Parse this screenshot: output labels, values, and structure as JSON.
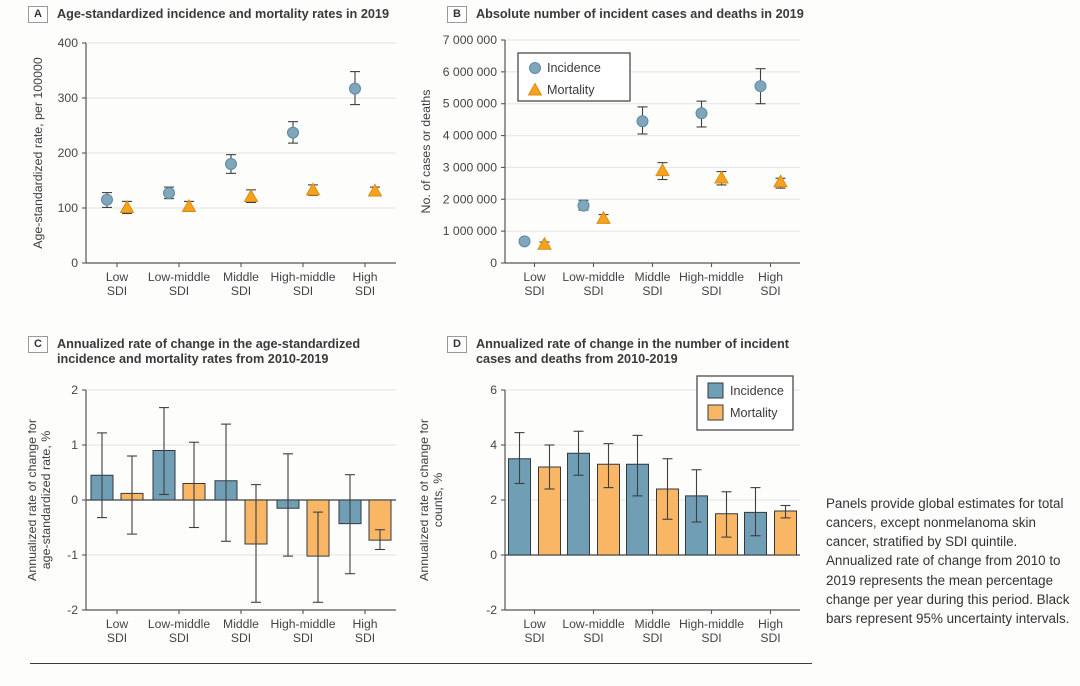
{
  "figure": {
    "caption": "Panels provide global estimates for total cancers, except nonmelanoma skin cancer, stratified by SDI quintile. Annualized rate of change from 2010 to 2019 represents the mean percentage change per year during this period. Black bars represent 95% uncertainty intervals."
  },
  "colors": {
    "incidence_marker": "#7FA6BB",
    "incidence_marker_stroke": "#5E8BA3",
    "mortality_marker": "#F6A21E",
    "mortality_marker_stroke": "#D88E10",
    "incidence_bar": "#6F9EB5",
    "mortality_bar": "#F9B766",
    "bar_stroke": "#33393E",
    "error_bar": "#3F3F3F",
    "gridline": "#E4E4E1",
    "axis": "#565656",
    "tick_text": "#444444",
    "legend_border": "#4A4A4A"
  },
  "chart_data": [
    {
      "type": "scatter",
      "letter": "A",
      "title": "Age-standardized incidence and mortality rates in 2019",
      "ylabel_lines": [
        "Age-standardized rate, per 100000"
      ],
      "ylim": [
        0,
        400
      ],
      "yticks": [
        {
          "value": 0,
          "label": "0"
        },
        {
          "value": 100,
          "label": "100"
        },
        {
          "value": 200,
          "label": "200"
        },
        {
          "value": 300,
          "label": "300"
        },
        {
          "value": 400,
          "label": "400"
        }
      ],
      "categories": [
        [
          "Low",
          "SDI"
        ],
        [
          "Low-middle",
          "SDI"
        ],
        [
          "Middle",
          "SDI"
        ],
        [
          "High-middle",
          "SDI"
        ],
        [
          "High",
          "SDI"
        ]
      ],
      "legend": null,
      "series": [
        {
          "name": "Incidence",
          "key": "incidence",
          "marker": "circle",
          "values": [
            115,
            127,
            180,
            237,
            317
          ],
          "ci_low": [
            101,
            117,
            163,
            218,
            288
          ],
          "ci_high": [
            128,
            138,
            197,
            257,
            348
          ]
        },
        {
          "name": "Mortality",
          "key": "mortality",
          "marker": "triangle",
          "values": [
            101,
            103,
            121,
            133,
            131
          ],
          "ci_low": [
            90,
            94,
            110,
            123,
            125
          ],
          "ci_high": [
            112,
            112,
            133,
            142,
            138
          ]
        }
      ]
    },
    {
      "type": "scatter",
      "letter": "B",
      "title": "Absolute number of incident cases and deaths in 2019",
      "ylabel_lines": [
        "No. of cases or deaths"
      ],
      "ylim": [
        0,
        7000000
      ],
      "yticks": [
        {
          "value": 0,
          "label": "0"
        },
        {
          "value": 1000000,
          "label": "1 000 000"
        },
        {
          "value": 2000000,
          "label": "2 000 000"
        },
        {
          "value": 3000000,
          "label": "3 000 000"
        },
        {
          "value": 4000000,
          "label": "4 000 000"
        },
        {
          "value": 5000000,
          "label": "5 000 000"
        },
        {
          "value": 6000000,
          "label": "6 000 000"
        },
        {
          "value": 7000000,
          "label": "7 000 000"
        }
      ],
      "categories": [
        [
          "Low",
          "SDI"
        ],
        [
          "Low-middle",
          "SDI"
        ],
        [
          "Middle",
          "SDI"
        ],
        [
          "High-middle",
          "SDI"
        ],
        [
          "High",
          "SDI"
        ]
      ],
      "legend": {
        "position": "inside-top-left",
        "items": [
          {
            "label": "Incidence",
            "series": "incidence",
            "marker": "circle"
          },
          {
            "label": "Mortality",
            "series": "mortality",
            "marker": "triangle"
          }
        ]
      },
      "series": [
        {
          "name": "Incidence",
          "key": "incidence",
          "marker": "circle",
          "values": [
            680000,
            1800000,
            4450000,
            4700000,
            5550000
          ],
          "ci_low": [
            600000,
            1660000,
            4050000,
            4270000,
            5000000
          ],
          "ci_high": [
            760000,
            1970000,
            4900000,
            5080000,
            6100000
          ]
        },
        {
          "name": "Mortality",
          "key": "mortality",
          "marker": "triangle",
          "values": [
            590000,
            1400000,
            2900000,
            2670000,
            2550000
          ],
          "ci_low": [
            520000,
            1300000,
            2620000,
            2450000,
            2350000
          ],
          "ci_high": [
            660000,
            1520000,
            3150000,
            2870000,
            2660000
          ]
        }
      ]
    },
    {
      "type": "bar",
      "letter": "C",
      "title": "Annualized rate of change in the age-standardized incidence and mortality rates from 2010-2019",
      "ylabel_lines": [
        "Annualized rate of change for",
        "age-standardized rate, %"
      ],
      "ylim": [
        -2,
        2
      ],
      "yticks": [
        {
          "value": -2,
          "label": "-2"
        },
        {
          "value": -1,
          "label": "-1"
        },
        {
          "value": 0,
          "label": "0"
        },
        {
          "value": 1,
          "label": "1"
        },
        {
          "value": 2,
          "label": "2"
        }
      ],
      "categories": [
        [
          "Low",
          "SDI"
        ],
        [
          "Low-middle",
          "SDI"
        ],
        [
          "Middle",
          "SDI"
        ],
        [
          "High-middle",
          "SDI"
        ],
        [
          "High",
          "SDI"
        ]
      ],
      "legend": null,
      "series": [
        {
          "name": "Incidence",
          "key": "incidence",
          "marker": "square",
          "values": [
            0.45,
            0.9,
            0.35,
            -0.15,
            -0.43
          ],
          "ci_low": [
            -0.32,
            0.1,
            -0.75,
            -1.02,
            -1.34
          ],
          "ci_high": [
            1.22,
            1.68,
            1.38,
            0.84,
            0.46
          ]
        },
        {
          "name": "Mortality",
          "key": "mortality",
          "marker": "square",
          "values": [
            0.12,
            0.3,
            -0.8,
            -1.02,
            -0.73
          ],
          "ci_low": [
            -0.62,
            -0.5,
            -1.86,
            -1.86,
            -0.9
          ],
          "ci_high": [
            0.8,
            1.05,
            0.28,
            -0.22,
            -0.54
          ]
        }
      ]
    },
    {
      "type": "bar",
      "letter": "D",
      "title": "Annualized rate of change in the number of incident cases and deaths from 2010-2019",
      "ylabel_lines": [
        "Annualized rate of change for",
        "counts, %"
      ],
      "ylim": [
        -2,
        6
      ],
      "yticks": [
        {
          "value": -2,
          "label": "-2"
        },
        {
          "value": 0,
          "label": "0"
        },
        {
          "value": 2,
          "label": "2"
        },
        {
          "value": 4,
          "label": "4"
        },
        {
          "value": 6,
          "label": "6"
        }
      ],
      "categories": [
        [
          "Low",
          "SDI"
        ],
        [
          "Low-middle",
          "SDI"
        ],
        [
          "Middle",
          "SDI"
        ],
        [
          "High-middle",
          "SDI"
        ],
        [
          "High",
          "SDI"
        ]
      ],
      "legend": {
        "position": "inside-top-right",
        "items": [
          {
            "label": "Incidence",
            "series": "incidence",
            "marker": "square"
          },
          {
            "label": "Mortality",
            "series": "mortality",
            "marker": "square"
          }
        ]
      },
      "series": [
        {
          "name": "Incidence",
          "key": "incidence",
          "marker": "square",
          "values": [
            3.5,
            3.7,
            3.3,
            2.15,
            1.55
          ],
          "ci_low": [
            2.6,
            2.9,
            2.15,
            1.2,
            0.7
          ],
          "ci_high": [
            4.45,
            4.5,
            4.35,
            3.1,
            2.45
          ]
        },
        {
          "name": "Mortality",
          "key": "mortality",
          "marker": "square",
          "values": [
            3.2,
            3.3,
            2.4,
            1.5,
            1.6
          ],
          "ci_low": [
            2.4,
            2.45,
            1.3,
            0.65,
            1.35
          ],
          "ci_high": [
            4.0,
            4.05,
            3.5,
            2.3,
            1.8
          ]
        }
      ]
    }
  ]
}
